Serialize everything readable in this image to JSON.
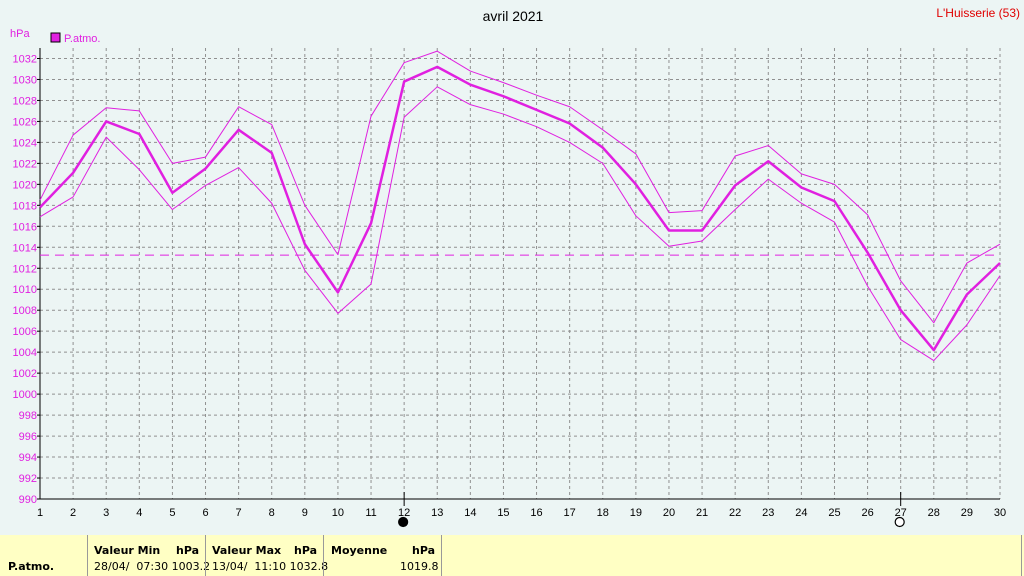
{
  "chart_data": {
    "type": "line",
    "title": "avril 2021",
    "station": "L'Huisserie (53)",
    "ylabel": "hPa",
    "ylim": [
      990,
      1033
    ],
    "yticks": [
      990,
      992,
      994,
      996,
      998,
      1000,
      1002,
      1004,
      1006,
      1008,
      1010,
      1012,
      1014,
      1016,
      1018,
      1020,
      1022,
      1024,
      1026,
      1028,
      1030,
      1032
    ],
    "x": [
      1,
      2,
      3,
      4,
      5,
      6,
      7,
      8,
      9,
      10,
      11,
      12,
      13,
      14,
      15,
      16,
      17,
      18,
      19,
      20,
      21,
      22,
      23,
      24,
      25,
      26,
      27,
      28,
      29,
      30
    ],
    "grid": true,
    "legend_position": "top-left",
    "colors": {
      "series": "#e020e0",
      "grid": "#909090",
      "background": "#ecf5f4",
      "stats_bg": "#ffffc4"
    },
    "series": [
      {
        "name": "P.atmo.",
        "role": "mean",
        "values": [
          1017.8,
          1021.1,
          1026.0,
          1024.8,
          1019.2,
          1021.5,
          1025.2,
          1023.0,
          1014.3,
          1009.7,
          1016.3,
          1029.8,
          1031.2,
          1029.5,
          1028.4,
          1027.1,
          1025.8,
          1023.5,
          1020.0,
          1015.6,
          1015.6,
          1019.9,
          1022.2,
          1019.7,
          1018.4,
          1013.5,
          1008.0,
          1004.2,
          1009.5,
          1012.5
        ]
      },
      {
        "role": "max",
        "values": [
          1018.5,
          1024.7,
          1027.3,
          1027.0,
          1022.0,
          1022.6,
          1027.4,
          1025.7,
          1018.0,
          1013.3,
          1026.5,
          1031.6,
          1032.7,
          1030.8,
          1029.7,
          1028.5,
          1027.4,
          1025.2,
          1022.9,
          1017.3,
          1017.5,
          1022.7,
          1023.7,
          1021.0,
          1020.0,
          1017.1,
          1010.8,
          1006.8,
          1012.5,
          1014.3
        ]
      },
      {
        "role": "min",
        "values": [
          1016.9,
          1018.8,
          1024.5,
          1021.4,
          1017.6,
          1019.9,
          1021.6,
          1018.2,
          1011.8,
          1007.7,
          1010.5,
          1026.4,
          1029.3,
          1027.6,
          1026.7,
          1025.5,
          1024.0,
          1022.0,
          1017.0,
          1014.1,
          1014.6,
          1017.6,
          1020.5,
          1018.2,
          1016.4,
          1010.3,
          1005.2,
          1003.2,
          1006.6,
          1011.3
        ]
      }
    ],
    "reference_line": {
      "value": 1013.25,
      "style": "dashed"
    },
    "moon_phases": [
      {
        "x": 12,
        "phase": "new"
      },
      {
        "x": 27,
        "phase": "full"
      }
    ]
  },
  "stats": {
    "row_label": "P.atmo.",
    "min": {
      "header": "Valeur Min",
      "unit": "hPa",
      "value": "28/04/  07:30 1003.2"
    },
    "max": {
      "header": "Valeur Max",
      "unit": "hPa",
      "value": "13/04/  11:10 1032.8"
    },
    "mean": {
      "header": "Moyenne",
      "unit": "hPa",
      "value": "1019.8"
    }
  }
}
